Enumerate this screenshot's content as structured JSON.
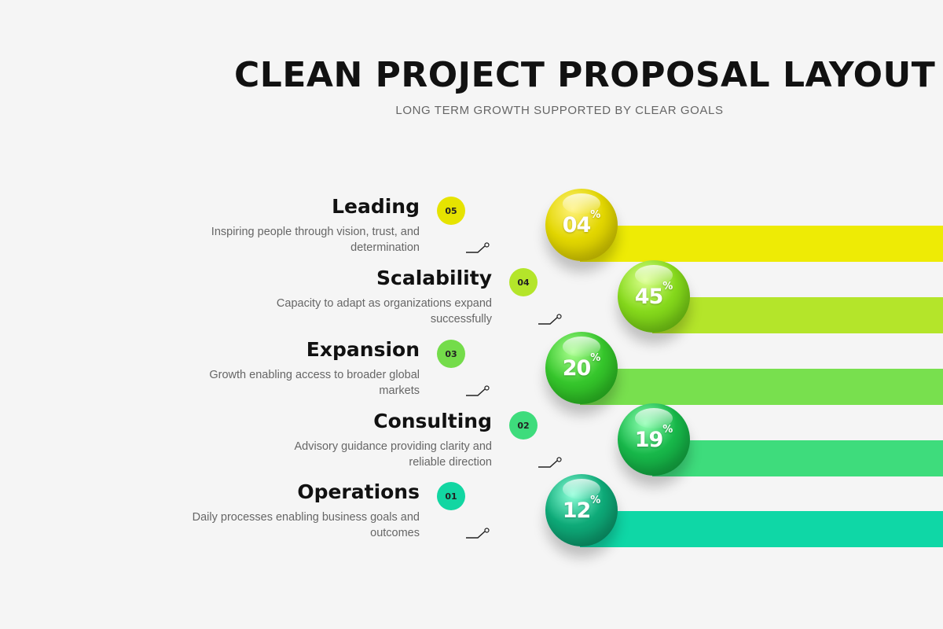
{
  "header": {
    "title": "CLEAN PROJECT PROPOSAL LAYOUT",
    "subtitle": "LONG TERM GROWTH SUPPORTED BY CLEAR GOALS"
  },
  "items": [
    {
      "heading": "Leading",
      "description": "Inspiring people through vision, trust, and determination",
      "number": "05",
      "percent": "04",
      "percent_sign": "%",
      "color": "#e8e400"
    },
    {
      "heading": "Scalability",
      "description": "Capacity to adapt as organizations expand successfully",
      "number": "04",
      "percent": "45",
      "percent_sign": "%",
      "color": "#b6e42a"
    },
    {
      "heading": "Expansion",
      "description": "Growth enabling access to broader global markets",
      "number": "03",
      "percent": "20",
      "percent_sign": "%",
      "color": "#76de4c"
    },
    {
      "heading": "Consulting",
      "description": "Advisory guidance providing clarity and reliable direction",
      "number": "02",
      "percent": "19",
      "percent_sign": "%",
      "color": "#3fdc7a"
    },
    {
      "heading": "Operations",
      "description": "Daily processes enabling business goals and outcomes",
      "number": "01",
      "percent": "12",
      "percent_sign": "%",
      "color": "#0fd7a6"
    }
  ],
  "colors": {
    "ball_0": "#d4c800",
    "ball_1": "#7fd41a",
    "ball_2": "#2fc42a",
    "ball_3": "#16b443",
    "ball_4": "#0ea774"
  }
}
